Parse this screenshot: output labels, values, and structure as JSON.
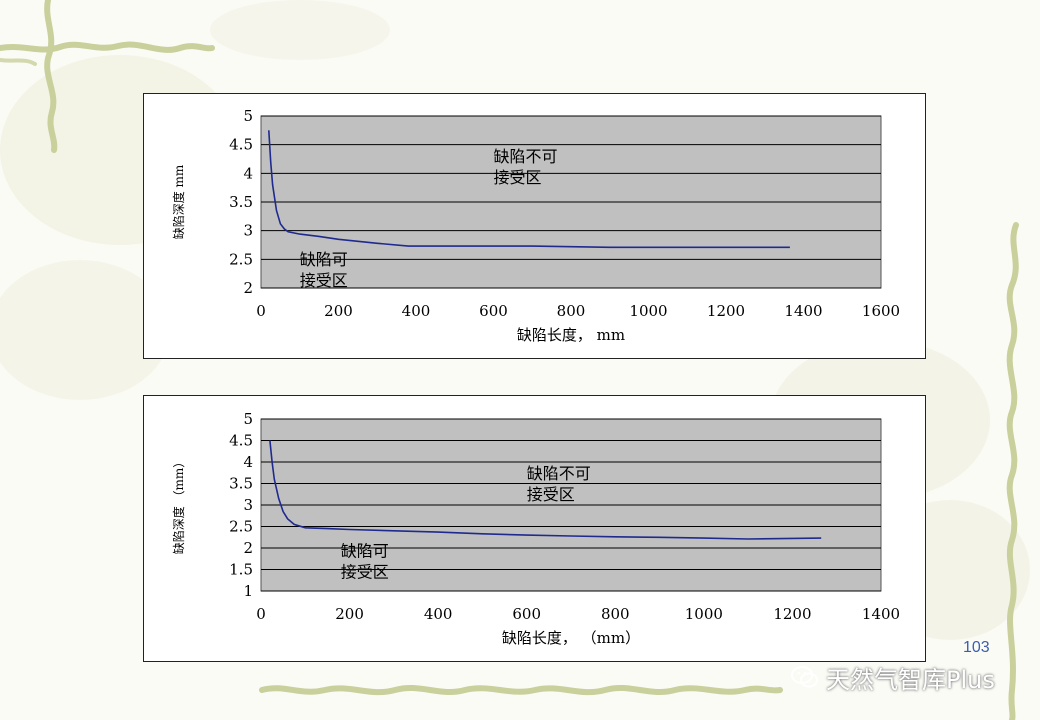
{
  "page_number": "103",
  "watermark": {
    "text": "天然气智库Plus",
    "icon": "wechat-icon"
  },
  "colors": {
    "plot_bg": "#c0c0c0",
    "curve": "#1f2a8f",
    "decoration": "#c8cf9a"
  },
  "chart_data": [
    {
      "type": "line",
      "xlabel": "缺陷长度，  mm",
      "ylabel": "缺陷深度  mm",
      "xlim": [
        0,
        1600
      ],
      "ylim": [
        2,
        5
      ],
      "xticks": [
        0,
        200,
        400,
        600,
        800,
        1000,
        1200,
        1400,
        1600
      ],
      "yticks": [
        2,
        2.5,
        3,
        3.5,
        4,
        4.5,
        5
      ],
      "grid": true,
      "annotations": [
        {
          "lines": [
            "缺陷不可",
            "接受区"
          ],
          "x": 600,
          "y": 4.2
        },
        {
          "lines": [
            "缺陷可",
            "接受区"
          ],
          "x": 100,
          "y": 2.4
        }
      ],
      "series": [
        {
          "x": [
            20,
            25,
            30,
            40,
            50,
            60,
            70,
            100,
            150,
            200,
            300,
            380,
            500,
            700,
            900,
            1100,
            1365
          ],
          "y": [
            4.75,
            4.2,
            3.8,
            3.35,
            3.12,
            3.03,
            2.98,
            2.94,
            2.9,
            2.85,
            2.78,
            2.73,
            2.73,
            2.73,
            2.71,
            2.71,
            2.71
          ]
        }
      ]
    },
    {
      "type": "line",
      "xlabel": "缺陷长度，  （mm）",
      "ylabel": "缺陷深度  （mm）",
      "xlim": [
        0,
        1400
      ],
      "ylim": [
        1,
        5
      ],
      "xticks": [
        0,
        200,
        400,
        600,
        800,
        1000,
        1200,
        1400
      ],
      "yticks": [
        1,
        1.5,
        2,
        2.5,
        3,
        3.5,
        4,
        4.5,
        5
      ],
      "grid": true,
      "annotations": [
        {
          "lines": [
            "缺陷不可",
            "接受区"
          ],
          "x": 600,
          "y": 3.6
        },
        {
          "lines": [
            "缺陷可",
            "接受区"
          ],
          "x": 180,
          "y": 1.8
        }
      ],
      "series": [
        {
          "x": [
            20,
            25,
            30,
            40,
            50,
            60,
            75,
            100,
            150,
            200,
            300,
            400,
            500,
            600,
            700,
            800,
            900,
            1000,
            1100,
            1265
          ],
          "y": [
            4.5,
            4.0,
            3.6,
            3.15,
            2.85,
            2.68,
            2.55,
            2.47,
            2.45,
            2.43,
            2.4,
            2.37,
            2.33,
            2.3,
            2.28,
            2.26,
            2.25,
            2.23,
            2.21,
            2.23
          ]
        }
      ]
    }
  ]
}
